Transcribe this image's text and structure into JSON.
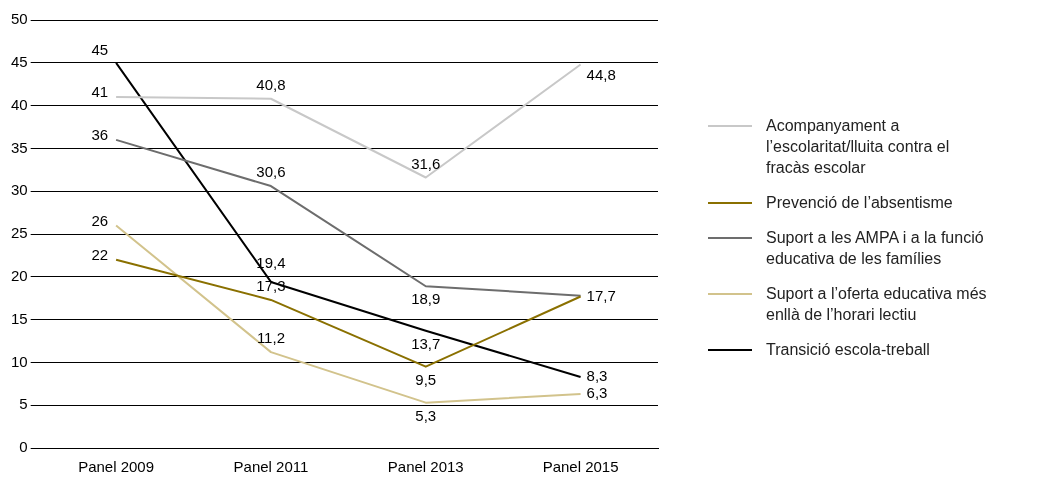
{
  "chart_data": {
    "type": "line",
    "categories": [
      "Panel 2009",
      "Panel 2011",
      "Panel 2013",
      "Panel 2015"
    ],
    "ylim": [
      0,
      50
    ],
    "yticks": [
      0,
      5,
      10,
      15,
      20,
      25,
      30,
      35,
      40,
      45,
      50
    ],
    "grid": "y",
    "legend": "right",
    "marker": "none",
    "line_style": "solid",
    "series": [
      {
        "name": "Acompanyament a l’escolaritat/lluita contra el fracàs escolar",
        "color": "#c8c8c8",
        "values": [
          41,
          40.8,
          31.6,
          44.8
        ],
        "value_labels": [
          "41",
          "40,8",
          "31,6",
          "44,8"
        ]
      },
      {
        "name": "Prevenció de l’absentisme",
        "color": "#8a7000",
        "values": [
          22,
          17.3,
          9.5,
          17.7
        ],
        "value_labels": [
          "22",
          "17,3",
          "9,5",
          "17,7"
        ]
      },
      {
        "name": "Suport a les AMPA i a la funció educativa de les famílies",
        "color": "#6d6d6d",
        "values": [
          36,
          30.6,
          18.9,
          17.8
        ],
        "value_labels": [
          "36",
          "30,6",
          "18,9",
          null
        ]
      },
      {
        "name": "Suport a l’oferta educativa més enllà de l’horari lectiu",
        "color": "#d2c38c",
        "values": [
          26,
          11.2,
          5.3,
          6.3
        ],
        "value_labels": [
          "26",
          "11,2",
          "5,3",
          "6,3"
        ]
      },
      {
        "name": "Transició escola-treball",
        "color": "#000000",
        "values": [
          45,
          19.4,
          13.7,
          8.3
        ],
        "value_labels": [
          "45",
          "19,4",
          "13,7",
          "8,3"
        ]
      }
    ]
  }
}
